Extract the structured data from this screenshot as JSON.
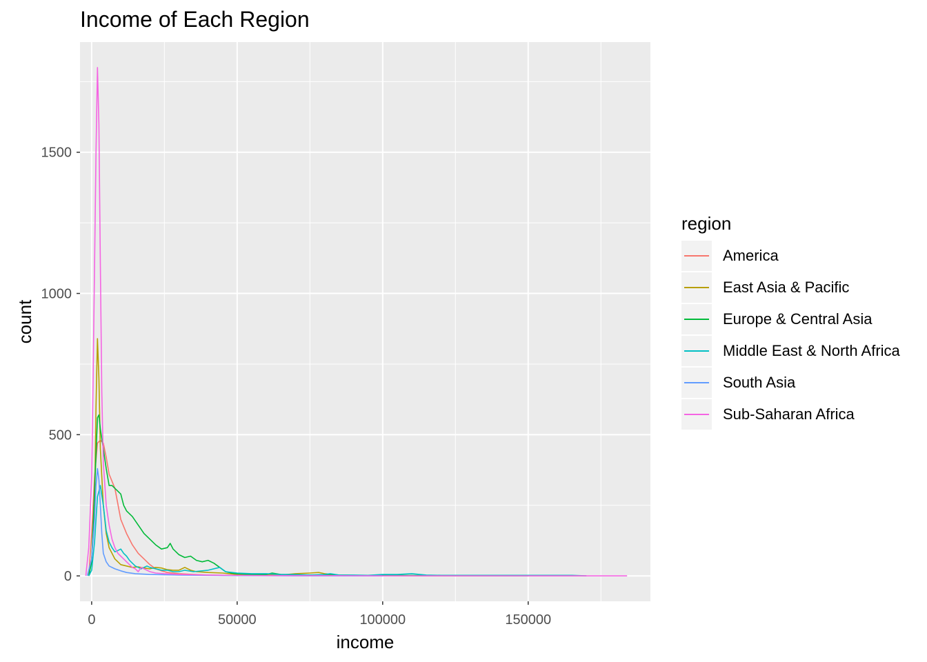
{
  "chart_data": {
    "type": "line",
    "title": "Income of Each Region",
    "xlabel": "income",
    "ylabel": "count",
    "xlim": [
      -4000,
      192000
    ],
    "ylim": [
      -90,
      1890
    ],
    "x_ticks": [
      0,
      50000,
      100000,
      150000
    ],
    "x_tick_labels": [
      "0",
      "50000",
      "100000",
      "150000"
    ],
    "y_ticks": [
      0,
      500,
      1000,
      1500
    ],
    "y_tick_labels": [
      "0",
      "500",
      "1000",
      "1500"
    ],
    "grid": true,
    "legend_title": "region",
    "legend_position": "right",
    "series": [
      {
        "name": "America",
        "color": "#F8766D",
        "points": [
          [
            -1000,
            0
          ],
          [
            0,
            150
          ],
          [
            1000,
            350
          ],
          [
            2000,
            470
          ],
          [
            3000,
            480
          ],
          [
            4000,
            470
          ],
          [
            5000,
            420
          ],
          [
            6000,
            360
          ],
          [
            8000,
            310
          ],
          [
            10000,
            200
          ],
          [
            12000,
            150
          ],
          [
            14000,
            110
          ],
          [
            16000,
            80
          ],
          [
            18000,
            60
          ],
          [
            20000,
            40
          ],
          [
            22000,
            25
          ],
          [
            24000,
            18
          ],
          [
            26000,
            12
          ],
          [
            28000,
            10
          ],
          [
            30000,
            8
          ],
          [
            35000,
            5
          ],
          [
            40000,
            3
          ],
          [
            45000,
            2
          ],
          [
            50000,
            2
          ],
          [
            60000,
            1
          ],
          [
            80000,
            1
          ],
          [
            100000,
            1
          ],
          [
            120000,
            0
          ],
          [
            150000,
            0
          ],
          [
            170000,
            0
          ]
        ]
      },
      {
        "name": "East Asia & Pacific",
        "color": "#B79F00",
        "points": [
          [
            -1000,
            0
          ],
          [
            0,
            60
          ],
          [
            1000,
            250
          ],
          [
            1500,
            600
          ],
          [
            2000,
            840
          ],
          [
            2500,
            700
          ],
          [
            3000,
            450
          ],
          [
            4000,
            250
          ],
          [
            5000,
            150
          ],
          [
            6000,
            100
          ],
          [
            8000,
            60
          ],
          [
            10000,
            40
          ],
          [
            12000,
            35
          ],
          [
            14000,
            30
          ],
          [
            16000,
            32
          ],
          [
            18000,
            28
          ],
          [
            20000,
            25
          ],
          [
            22000,
            30
          ],
          [
            24000,
            28
          ],
          [
            26000,
            22
          ],
          [
            28000,
            20
          ],
          [
            30000,
            20
          ],
          [
            32000,
            30
          ],
          [
            34000,
            20
          ],
          [
            36000,
            15
          ],
          [
            40000,
            12
          ],
          [
            45000,
            10
          ],
          [
            50000,
            5
          ],
          [
            55000,
            3
          ],
          [
            60000,
            5
          ],
          [
            65000,
            3
          ],
          [
            70000,
            8
          ],
          [
            75000,
            10
          ],
          [
            78000,
            12
          ],
          [
            80000,
            8
          ],
          [
            85000,
            3
          ],
          [
            90000,
            2
          ],
          [
            100000,
            1
          ],
          [
            120000,
            0
          ],
          [
            150000,
            0
          ]
        ]
      },
      {
        "name": "Europe & Central Asia",
        "color": "#00BA38",
        "points": [
          [
            -1000,
            0
          ],
          [
            0,
            50
          ],
          [
            1000,
            300
          ],
          [
            2000,
            560
          ],
          [
            2500,
            570
          ],
          [
            3000,
            520
          ],
          [
            4000,
            450
          ],
          [
            5000,
            380
          ],
          [
            6000,
            320
          ],
          [
            7000,
            320
          ],
          [
            8000,
            310
          ],
          [
            9000,
            300
          ],
          [
            10000,
            290
          ],
          [
            11000,
            250
          ],
          [
            12000,
            230
          ],
          [
            14000,
            210
          ],
          [
            16000,
            180
          ],
          [
            18000,
            150
          ],
          [
            20000,
            130
          ],
          [
            22000,
            110
          ],
          [
            24000,
            95
          ],
          [
            26000,
            100
          ],
          [
            27000,
            115
          ],
          [
            28000,
            95
          ],
          [
            30000,
            75
          ],
          [
            32000,
            65
          ],
          [
            34000,
            70
          ],
          [
            36000,
            55
          ],
          [
            38000,
            50
          ],
          [
            40000,
            55
          ],
          [
            42000,
            45
          ],
          [
            44000,
            30
          ],
          [
            46000,
            15
          ],
          [
            48000,
            10
          ],
          [
            50000,
            8
          ],
          [
            55000,
            5
          ],
          [
            60000,
            5
          ],
          [
            62000,
            10
          ],
          [
            65000,
            5
          ],
          [
            70000,
            4
          ],
          [
            80000,
            3
          ],
          [
            90000,
            2
          ],
          [
            100000,
            2
          ],
          [
            120000,
            1
          ],
          [
            150000,
            0
          ]
        ]
      },
      {
        "name": "Middle East & North Africa",
        "color": "#00BFC4",
        "points": [
          [
            -1000,
            0
          ],
          [
            0,
            20
          ],
          [
            1000,
            120
          ],
          [
            2000,
            280
          ],
          [
            3000,
            320
          ],
          [
            4000,
            250
          ],
          [
            5000,
            160
          ],
          [
            6000,
            120
          ],
          [
            7000,
            100
          ],
          [
            8000,
            85
          ],
          [
            9000,
            90
          ],
          [
            10000,
            95
          ],
          [
            11000,
            80
          ],
          [
            12000,
            70
          ],
          [
            13000,
            55
          ],
          [
            14000,
            45
          ],
          [
            15000,
            35
          ],
          [
            16000,
            30
          ],
          [
            17000,
            25
          ],
          [
            18000,
            30
          ],
          [
            19000,
            35
          ],
          [
            20000,
            30
          ],
          [
            22000,
            25
          ],
          [
            24000,
            20
          ],
          [
            26000,
            20
          ],
          [
            28000,
            15
          ],
          [
            30000,
            15
          ],
          [
            32000,
            20
          ],
          [
            35000,
            15
          ],
          [
            40000,
            20
          ],
          [
            44000,
            30
          ],
          [
            46000,
            15
          ],
          [
            50000,
            10
          ],
          [
            55000,
            8
          ],
          [
            60000,
            8
          ],
          [
            65000,
            5
          ],
          [
            70000,
            5
          ],
          [
            75000,
            3
          ],
          [
            80000,
            5
          ],
          [
            82000,
            8
          ],
          [
            85000,
            3
          ],
          [
            90000,
            3
          ],
          [
            95000,
            2
          ],
          [
            100000,
            5
          ],
          [
            105000,
            5
          ],
          [
            110000,
            8
          ],
          [
            115000,
            3
          ],
          [
            120000,
            2
          ],
          [
            130000,
            2
          ],
          [
            150000,
            2
          ],
          [
            165000,
            2
          ],
          [
            170000,
            0
          ]
        ]
      },
      {
        "name": "South Asia",
        "color": "#619CFF",
        "points": [
          [
            -1500,
            0
          ],
          [
            0,
            60
          ],
          [
            1000,
            200
          ],
          [
            1500,
            320
          ],
          [
            2000,
            380
          ],
          [
            2500,
            340
          ],
          [
            3000,
            250
          ],
          [
            3500,
            150
          ],
          [
            4000,
            80
          ],
          [
            5000,
            50
          ],
          [
            6000,
            35
          ],
          [
            8000,
            25
          ],
          [
            10000,
            18
          ],
          [
            12000,
            12
          ],
          [
            15000,
            8
          ],
          [
            20000,
            5
          ],
          [
            30000,
            3
          ],
          [
            40000,
            2
          ],
          [
            50000,
            1
          ],
          [
            70000,
            0
          ],
          [
            100000,
            0
          ]
        ]
      },
      {
        "name": "Sub-Saharan Africa",
        "color": "#F564E3",
        "points": [
          [
            -2000,
            0
          ],
          [
            -1000,
            100
          ],
          [
            0,
            350
          ],
          [
            500,
            700
          ],
          [
            1000,
            1100
          ],
          [
            1500,
            1500
          ],
          [
            2000,
            1800
          ],
          [
            2500,
            1600
          ],
          [
            3000,
            1100
          ],
          [
            3500,
            650
          ],
          [
            4000,
            400
          ],
          [
            5000,
            250
          ],
          [
            6000,
            180
          ],
          [
            7000,
            130
          ],
          [
            8000,
            100
          ],
          [
            9000,
            80
          ],
          [
            10000,
            70
          ],
          [
            11000,
            60
          ],
          [
            12000,
            50
          ],
          [
            13000,
            40
          ],
          [
            14000,
            30
          ],
          [
            15000,
            25
          ],
          [
            16000,
            15
          ],
          [
            17000,
            30
          ],
          [
            18000,
            25
          ],
          [
            20000,
            15
          ],
          [
            22000,
            10
          ],
          [
            25000,
            8
          ],
          [
            30000,
            5
          ],
          [
            35000,
            4
          ],
          [
            40000,
            3
          ],
          [
            50000,
            2
          ],
          [
            60000,
            1
          ],
          [
            80000,
            1
          ],
          [
            100000,
            0
          ],
          [
            150000,
            0
          ],
          [
            184000,
            0
          ]
        ]
      }
    ]
  }
}
